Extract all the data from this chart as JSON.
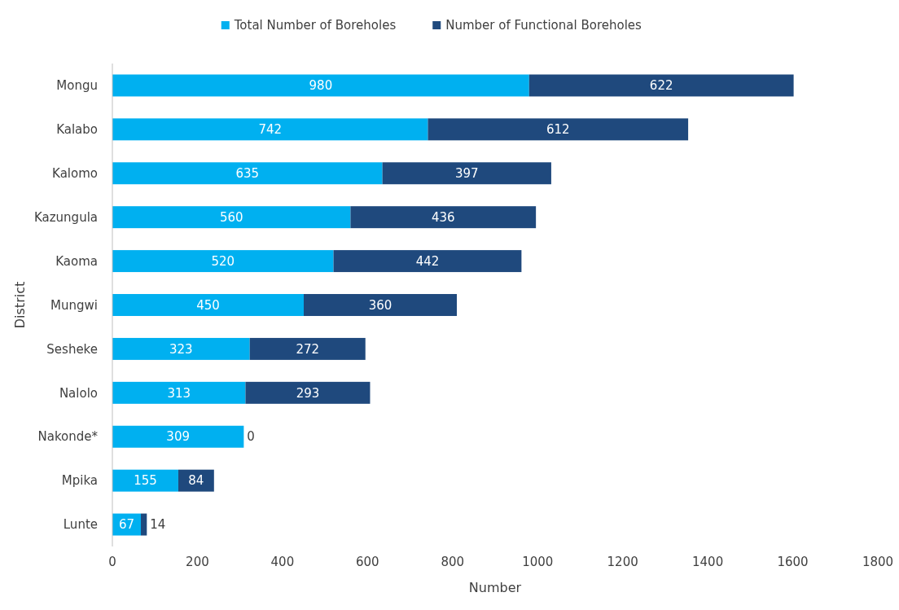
{
  "chart_data": {
    "type": "bar",
    "orientation": "horizontal",
    "stacked": true,
    "xlabel": "Number",
    "ylabel": "District",
    "categories": [
      "Mongu",
      "Kalabo",
      "Kalomo",
      "Kazungula",
      "Kaoma",
      "Mungwi",
      "Sesheke",
      "Nalolo",
      "Nakonde*",
      "Mpika",
      "Lunte"
    ],
    "series": [
      {
        "name": "Total Number of Boreholes",
        "color": "#00b0f0",
        "values": [
          980,
          742,
          635,
          560,
          520,
          450,
          323,
          313,
          309,
          155,
          67
        ]
      },
      {
        "name": "Number of Functional Boreholes",
        "color": "#1f497d",
        "values": [
          622,
          612,
          397,
          436,
          442,
          360,
          272,
          293,
          0,
          84,
          14
        ]
      }
    ],
    "xlim": [
      0,
      1800
    ],
    "xticks": [
      0,
      200,
      400,
      600,
      800,
      1000,
      1200,
      1400,
      1600,
      1800
    ],
    "data_labels": true,
    "legend": "top",
    "grid": false
  }
}
